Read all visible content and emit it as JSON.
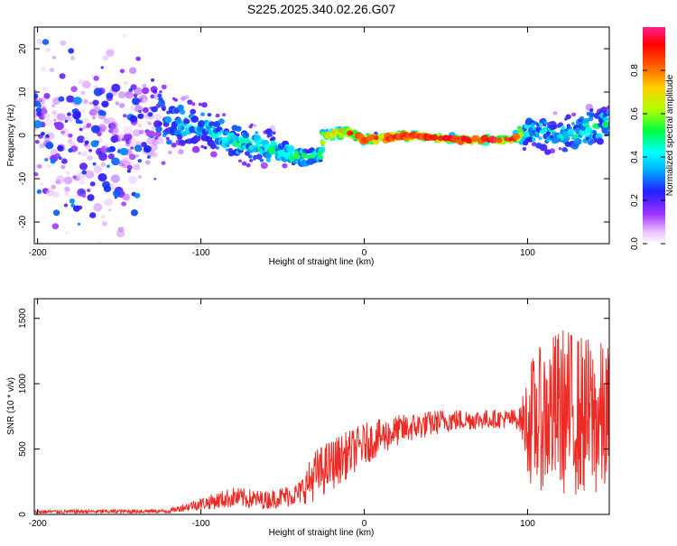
{
  "title": "S225.2025.340.02.26.G07",
  "chart_data": [
    {
      "type": "heatmap",
      "title": "S225.2025.340.02.26.G07",
      "xlabel": "Height of straight line (km)",
      "ylabel": "Frequency (Hz)",
      "xlim": [
        -202,
        150
      ],
      "ylim": [
        -25,
        25
      ],
      "xticks": [
        -200,
        -100,
        0,
        100
      ],
      "yticks": [
        20,
        10,
        0,
        -10,
        -20
      ],
      "colorbar": {
        "label": "Normalized spectral amplitude",
        "range": [
          0.0,
          1.0
        ],
        "ticks": [
          0.0,
          0.2,
          0.4,
          0.6,
          0.8
        ],
        "colors": [
          "#ffffff",
          "#e6b3ff",
          "#8a2be2",
          "#2020ff",
          "#00d8ff",
          "#00ff60",
          "#c8ff00",
          "#ffd000",
          "#ff7000",
          "#ff0000",
          "#ff3080"
        ]
      },
      "ridge": [
        {
          "x": -200,
          "f": 0,
          "amp": 0.25,
          "width": 20
        },
        {
          "x": -150,
          "f": 0,
          "amp": 0.25,
          "width": 20
        },
        {
          "x": -115,
          "f": 3,
          "amp": 0.35,
          "width": 6
        },
        {
          "x": -100,
          "f": 2,
          "amp": 0.4,
          "width": 5
        },
        {
          "x": -80,
          "f": -1,
          "amp": 0.45,
          "width": 4
        },
        {
          "x": -60,
          "f": -3,
          "amp": 0.45,
          "width": 4
        },
        {
          "x": -40,
          "f": -5,
          "amp": 0.5,
          "width": 2
        },
        {
          "x": -27,
          "f": -5,
          "amp": 0.5,
          "width": 1.5
        },
        {
          "x": -25,
          "f": 0,
          "amp": 0.6,
          "width": 1
        },
        {
          "x": -10,
          "f": 1,
          "amp": 0.85,
          "width": 0.8
        },
        {
          "x": 0,
          "f": -1,
          "amp": 0.8,
          "width": 0.8
        },
        {
          "x": 30,
          "f": 0,
          "amp": 0.9,
          "width": 0.7
        },
        {
          "x": 60,
          "f": -1,
          "amp": 0.95,
          "width": 0.6
        },
        {
          "x": 90,
          "f": -1,
          "amp": 0.9,
          "width": 0.6
        },
        {
          "x": 100,
          "f": 1,
          "amp": 0.4,
          "width": 4
        },
        {
          "x": 125,
          "f": 0,
          "amp": 0.45,
          "width": 4
        },
        {
          "x": 150,
          "f": 3,
          "amp": 0.45,
          "width": 4
        }
      ]
    },
    {
      "type": "line",
      "xlabel": "Height of straight line (km)",
      "ylabel": "SNR (10 * v/v)",
      "xlim": [
        -202,
        150
      ],
      "ylim": [
        0,
        1650
      ],
      "xticks": [
        -200,
        -100,
        0,
        100
      ],
      "yticks": [
        0,
        500,
        1000,
        1500
      ],
      "series": [
        {
          "name": "SNR",
          "color": "#ee2a24",
          "envelope": [
            {
              "x": -202,
              "mean": 20,
              "noise": 15
            },
            {
              "x": -120,
              "mean": 25,
              "noise": 15
            },
            {
              "x": -105,
              "mean": 70,
              "noise": 40
            },
            {
              "x": -80,
              "mean": 130,
              "noise": 80
            },
            {
              "x": -60,
              "mean": 110,
              "noise": 70
            },
            {
              "x": -40,
              "mean": 160,
              "noise": 90
            },
            {
              "x": -30,
              "mean": 300,
              "noise": 200
            },
            {
              "x": -20,
              "mean": 380,
              "noise": 200
            },
            {
              "x": 0,
              "mean": 540,
              "noise": 160
            },
            {
              "x": 20,
              "mean": 640,
              "noise": 120
            },
            {
              "x": 50,
              "mean": 720,
              "noise": 90
            },
            {
              "x": 80,
              "mean": 730,
              "noise": 70
            },
            {
              "x": 95,
              "mean": 730,
              "noise": 80
            },
            {
              "x": 102,
              "mean": 700,
              "noise": 500
            },
            {
              "x": 120,
              "mean": 800,
              "noise": 650
            },
            {
              "x": 150,
              "mean": 700,
              "noise": 600
            }
          ]
        }
      ]
    }
  ]
}
